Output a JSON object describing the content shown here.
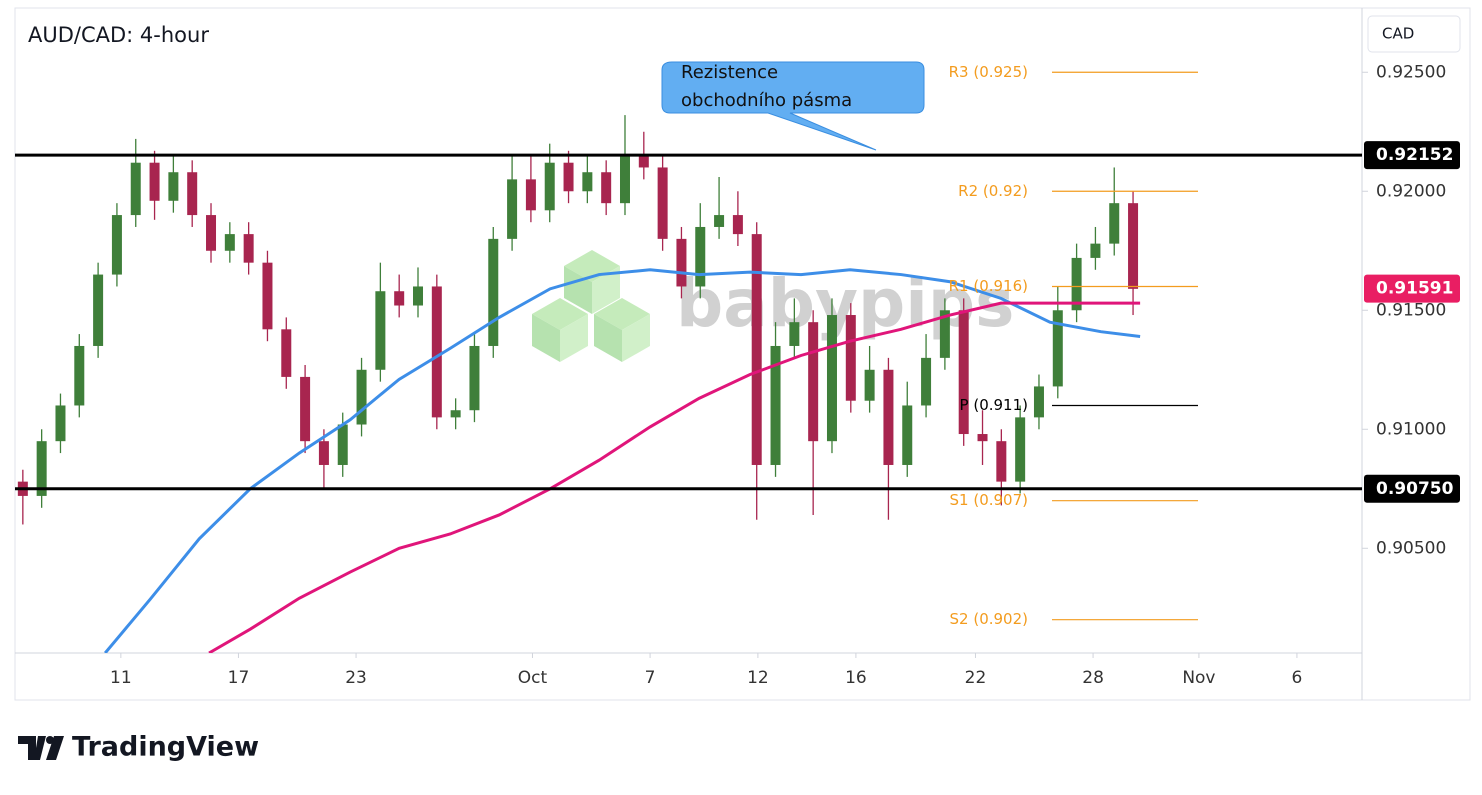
{
  "chart_data": {
    "type": "candlestick",
    "title": "AUD/CAD: 4-hour",
    "currency": "CAD",
    "watermark": "babypips",
    "footer": "TradingView",
    "xlim": [
      0,
      68.72
    ],
    "ylim": [
      0.9006,
      0.9277
    ],
    "xticks": [
      {
        "value": 5.4,
        "label": "11"
      },
      {
        "value": 11.4,
        "label": "17"
      },
      {
        "value": 17.4,
        "label": "23"
      },
      {
        "value": 26.4,
        "label": "Oct"
      },
      {
        "value": 32.4,
        "label": "7"
      },
      {
        "value": 37.9,
        "label": "12"
      },
      {
        "value": 42.9,
        "label": "16"
      },
      {
        "value": 49.0,
        "label": "22"
      },
      {
        "value": 55.0,
        "label": "28"
      },
      {
        "value": 60.4,
        "label": "Nov"
      },
      {
        "value": 65.4,
        "label": "6"
      }
    ],
    "yticks": [
      {
        "value": 0.925,
        "label": "0.92500"
      },
      {
        "value": 0.92,
        "label": "0.92000"
      },
      {
        "value": 0.915,
        "label": "0.91500"
      },
      {
        "value": 0.91,
        "label": "0.91000"
      },
      {
        "value": 0.905,
        "label": "0.90500"
      }
    ],
    "up_color": "#3f7f3a",
    "down_color": "#a8254f",
    "x": [
      0.4,
      1.36,
      2.32,
      3.28,
      4.24,
      5.2,
      6.16,
      7.12,
      8.08,
      9.04,
      10.0,
      10.96,
      11.92,
      12.88,
      13.84,
      14.8,
      15.76,
      16.72,
      17.68,
      18.64,
      19.6,
      20.56,
      21.52,
      22.48,
      23.44,
      24.4,
      25.36,
      26.32,
      27.28,
      28.24,
      29.2,
      30.16,
      31.12,
      32.08,
      33.04,
      34.0,
      34.96,
      35.92,
      36.88,
      37.84,
      38.8,
      39.76,
      40.72,
      41.68,
      42.64,
      43.6,
      44.56,
      45.52,
      46.48,
      47.44,
      48.4,
      49.36,
      50.32,
      51.28,
      52.24,
      53.2,
      54.16,
      55.12,
      56.08,
      57.04
    ],
    "open": [
      0.9078,
      0.9072,
      0.9095,
      0.911,
      0.9135,
      0.9165,
      0.919,
      0.9212,
      0.9196,
      0.9208,
      0.919,
      0.9175,
      0.9182,
      0.917,
      0.9142,
      0.9122,
      0.9095,
      0.9085,
      0.9102,
      0.9125,
      0.9158,
      0.9152,
      0.916,
      0.9105,
      0.9108,
      0.9135,
      0.918,
      0.9205,
      0.9192,
      0.9212,
      0.92,
      0.9208,
      0.9195,
      0.9215,
      0.921,
      0.918,
      0.916,
      0.9185,
      0.919,
      0.9182,
      0.9085,
      0.9135,
      0.9145,
      0.9095,
      0.9148,
      0.9112,
      0.9125,
      0.9085,
      0.911,
      0.913,
      0.915,
      0.9098,
      0.9095,
      0.9078,
      0.9105,
      0.9118,
      0.915,
      0.9172,
      0.9178,
      0.9195
    ],
    "high": [
      0.9083,
      0.91,
      0.9115,
      0.914,
      0.917,
      0.9195,
      0.9222,
      0.9217,
      0.9215,
      0.9213,
      0.9195,
      0.9187,
      0.9187,
      0.9175,
      0.9147,
      0.9127,
      0.91,
      0.9107,
      0.913,
      0.917,
      0.9165,
      0.9168,
      0.9165,
      0.9113,
      0.914,
      0.9185,
      0.9215,
      0.9215,
      0.922,
      0.9217,
      0.9215,
      0.9213,
      0.9232,
      0.9225,
      0.9215,
      0.9185,
      0.9195,
      0.9206,
      0.92,
      0.9187,
      0.9145,
      0.9155,
      0.915,
      0.9155,
      0.9153,
      0.9135,
      0.913,
      0.912,
      0.914,
      0.9155,
      0.9155,
      0.9108,
      0.91,
      0.911,
      0.9123,
      0.916,
      0.9178,
      0.9185,
      0.921,
      0.92
    ],
    "low": [
      0.906,
      0.9067,
      0.909,
      0.9105,
      0.913,
      0.916,
      0.9185,
      0.9188,
      0.9191,
      0.9185,
      0.917,
      0.917,
      0.9165,
      0.9137,
      0.9117,
      0.909,
      0.9075,
      0.908,
      0.9097,
      0.912,
      0.9147,
      0.9147,
      0.91,
      0.91,
      0.9103,
      0.913,
      0.9175,
      0.9187,
      0.9187,
      0.9195,
      0.9195,
      0.919,
      0.919,
      0.9205,
      0.9175,
      0.9155,
      0.9155,
      0.918,
      0.9177,
      0.9062,
      0.908,
      0.913,
      0.9064,
      0.909,
      0.9107,
      0.9107,
      0.9062,
      0.908,
      0.9105,
      0.9125,
      0.9093,
      0.9085,
      0.9068,
      0.9073,
      0.91,
      0.9113,
      0.9145,
      0.9167,
      0.9173,
      0.9148
    ],
    "close": [
      0.9072,
      0.9095,
      0.911,
      0.9135,
      0.9165,
      0.919,
      0.9212,
      0.9196,
      0.9208,
      0.919,
      0.9175,
      0.9182,
      0.917,
      0.9142,
      0.9122,
      0.9095,
      0.9085,
      0.9102,
      0.9125,
      0.9158,
      0.9152,
      0.916,
      0.9105,
      0.9108,
      0.9135,
      0.918,
      0.9205,
      0.9192,
      0.9212,
      0.92,
      0.9208,
      0.9195,
      0.9215,
      0.921,
      0.918,
      0.916,
      0.9185,
      0.919,
      0.9182,
      0.9085,
      0.9135,
      0.9145,
      0.9095,
      0.9148,
      0.9112,
      0.9125,
      0.9085,
      0.911,
      0.913,
      0.915,
      0.9098,
      0.9095,
      0.9078,
      0.9105,
      0.9118,
      0.915,
      0.9172,
      0.9178,
      0.9195,
      0.9159
    ],
    "overlays": [
      {
        "color": "#3d8ee8",
        "x": [
          4.6,
          6.9,
          9.4,
          12.0,
          14.5,
          17.1,
          19.6,
          22.2,
          24.7,
          27.3,
          29.8,
          32.4,
          34.9,
          37.5,
          40.1,
          42.6,
          45.2,
          47.7,
          50.3,
          52.8,
          55.4,
          57.4
        ],
        "values": [
          0.9006,
          0.90286,
          0.9054,
          0.9075,
          0.909,
          0.9104,
          0.9121,
          0.9134,
          0.9147,
          0.9159,
          0.9165,
          0.9167,
          0.9165,
          0.9166,
          0.9165,
          0.9167,
          0.9165,
          0.9162,
          0.9155,
          0.9145,
          0.9141,
          0.9139
        ]
      },
      {
        "color": "#e0157a",
        "x": [
          9.9,
          12.0,
          14.5,
          17.1,
          19.6,
          22.2,
          24.7,
          27.3,
          29.8,
          32.4,
          34.9,
          37.5,
          40.1,
          42.6,
          45.2,
          47.7,
          50.3,
          52.8,
          55.4,
          57.4
        ],
        "values": [
          0.9006,
          0.9016,
          0.9029,
          0.904,
          0.905,
          0.9056,
          0.9064,
          0.9075,
          0.9087,
          0.9101,
          0.9113,
          0.9123,
          0.9131,
          0.9137,
          0.9142,
          0.9148,
          0.9153,
          0.9153,
          0.9153,
          0.9153
        ]
      }
    ],
    "level_color": "#000000",
    "levels": [
      0.92152,
      {
        "value": 0.9075,
        "label": "0.90750"
      }
    ],
    "last_price": 0.91591,
    "last_price_color": "#e91e63",
    "pivots": [
      {
        "label": "R3 (0.925)",
        "value": 0.925,
        "color": "#f39c1f"
      },
      {
        "label": "R2 (0.92)",
        "value": 0.92,
        "color": "#f39c1f"
      },
      {
        "label": "R1 (0.916)",
        "value": 0.916,
        "color": "#f39c1f"
      },
      {
        "label": "P (0.911)",
        "value": 0.911,
        "color": "#000000"
      },
      {
        "label": "S1 (0.907)",
        "value": 0.907,
        "color": "#f39c1f"
      },
      {
        "label": "S2 (0.902)",
        "value": 0.902,
        "color": "#f39c1f"
      }
    ],
    "annotation": [
      "Rezistence",
      "obchodního pásma"
    ]
  }
}
